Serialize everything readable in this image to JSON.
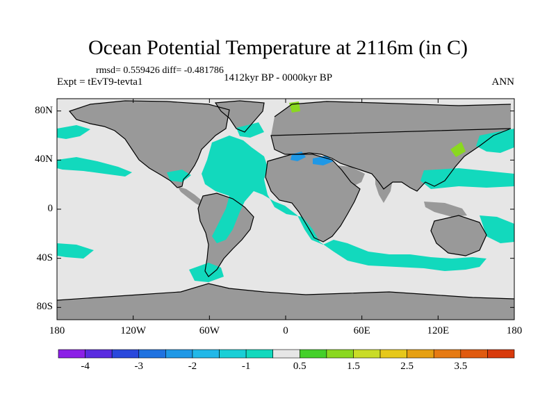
{
  "title": "Ocean Potential Temperature at 2116m (in C)",
  "stats": "rmsd= 0.559426 diff= -0.481786",
  "experiment": "Expt = tEvT9-tevta1",
  "period": "1412kyr BP - 0000kyr BP",
  "season": "ANN",
  "lat_ticks": [
    {
      "label": "80N",
      "lat": 80
    },
    {
      "label": "40N",
      "lat": 40
    },
    {
      "label": "0",
      "lat": 0
    },
    {
      "label": "40S",
      "lat": -40
    },
    {
      "label": "80S",
      "lat": -80
    }
  ],
  "lon_ticks": [
    {
      "label": "180",
      "lon": -180
    },
    {
      "label": "120W",
      "lon": -120
    },
    {
      "label": "60W",
      "lon": -60
    },
    {
      "label": "0",
      "lon": 0
    },
    {
      "label": "60E",
      "lon": 60
    },
    {
      "label": "120E",
      "lon": 120
    },
    {
      "label": "180",
      "lon": 180
    }
  ],
  "colorbar": {
    "colors": [
      "#8b1fe6",
      "#5a2be0",
      "#2a48dc",
      "#1f72e0",
      "#1f98e6",
      "#22b8e8",
      "#19cfd6",
      "#12d9bd",
      "#e6e6e6",
      "#44d02a",
      "#8ad820",
      "#c9dc28",
      "#e6c81a",
      "#e6a012",
      "#e67a12",
      "#e05a0f",
      "#d83a0c"
    ],
    "labels": [
      {
        "text": "-4",
        "boundary": 1
      },
      {
        "text": "-3",
        "boundary": 3
      },
      {
        "text": "-2",
        "boundary": 5
      },
      {
        "text": "-1",
        "boundary": 7
      },
      {
        "text": "0.5",
        "boundary": 9
      },
      {
        "text": "1.5",
        "boundary": 11
      },
      {
        "text": "2.5",
        "boundary": 13
      },
      {
        "text": "3.5",
        "boundary": 15
      }
    ]
  },
  "map_colors": {
    "land": "#999999",
    "ocean_default": "#e6e6e6",
    "anomaly_neg1": "#12d9bd",
    "anomaly_neg2": "#1f98e6",
    "anomaly_pos1": "#8ad820",
    "coast": "#000000"
  }
}
